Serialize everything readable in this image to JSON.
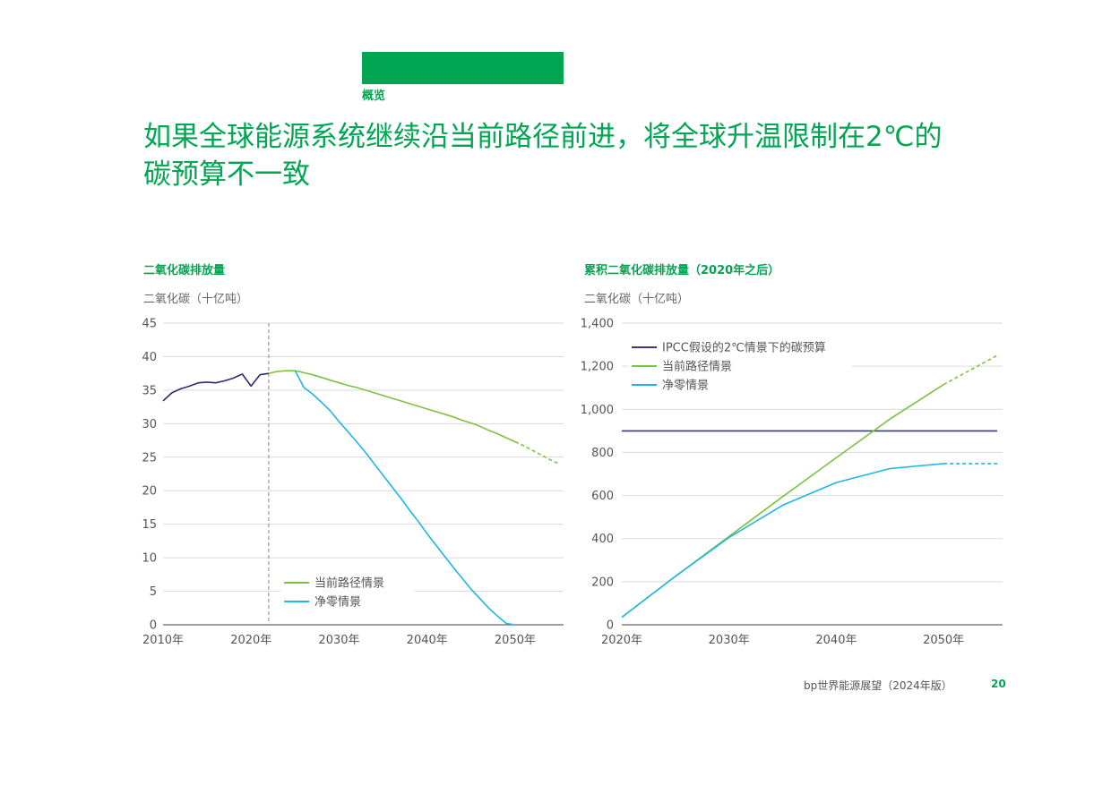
{
  "colors": {
    "brand_green": "#00a651",
    "current_path": "#7dc242",
    "net_zero": "#1eb7e0",
    "historical": "#2e2b6e",
    "ipcc": "#3a3889",
    "grid": "#d9d9d9",
    "axis": "#666666",
    "tick_text": "#555555"
  },
  "header": {
    "section_label": "概览",
    "headline": "如果全球能源系统继续沿当前路径前进，将全球升温限制在2℃的碳预算不一致"
  },
  "footer": {
    "publication": "bp世界能源展望（2024年版）",
    "page_number": "20"
  },
  "chart_data": [
    {
      "type": "line",
      "title": "二氧化碳排放量",
      "ylabel": "二氧化碳（十亿吨）",
      "xlim": [
        2010,
        2055.5
      ],
      "ylim": [
        0,
        45
      ],
      "x_ticks": [
        2010,
        2020,
        2030,
        2040,
        2050
      ],
      "x_tick_labels": [
        "2010年",
        "2020年",
        "2030年",
        "2040年",
        "2050年"
      ],
      "y_ticks": [
        0,
        5,
        10,
        15,
        20,
        25,
        30,
        35,
        40,
        45
      ],
      "y_tick_labels": [
        "0",
        "5",
        "10",
        "15",
        "20",
        "25",
        "30",
        "35",
        "40",
        "45"
      ],
      "grid": true,
      "reference_line_x": 2022,
      "legend_position": "bottom-right",
      "series": [
        {
          "name": "",
          "color": "#2e2b6e",
          "points": [
            [
              2010,
              33.4
            ],
            [
              2011,
              34.6
            ],
            [
              2012,
              35.2
            ],
            [
              2013,
              35.6
            ],
            [
              2014,
              36.1
            ],
            [
              2015,
              36.2
            ],
            [
              2016,
              36.1
            ],
            [
              2017,
              36.4
            ],
            [
              2018,
              36.8
            ],
            [
              2019,
              37.4
            ],
            [
              2020,
              35.6
            ],
            [
              2021,
              37.3
            ],
            [
              2022,
              37.5
            ]
          ]
        },
        {
          "name": "当前路径情景",
          "color": "#7dc242",
          "points": [
            [
              2022,
              37.5
            ],
            [
              2023,
              37.8
            ],
            [
              2024,
              37.9
            ],
            [
              2025,
              37.9
            ],
            [
              2026,
              37.6
            ],
            [
              2027,
              37.3
            ],
            [
              2028,
              36.9
            ],
            [
              2029,
              36.5
            ],
            [
              2030,
              36.1
            ],
            [
              2031,
              35.7
            ],
            [
              2032,
              35.4
            ],
            [
              2033,
              35.0
            ],
            [
              2034,
              34.6
            ],
            [
              2035,
              34.2
            ],
            [
              2036,
              33.8
            ],
            [
              2037,
              33.4
            ],
            [
              2038,
              33.0
            ],
            [
              2039,
              32.6
            ],
            [
              2040,
              32.2
            ],
            [
              2041,
              31.8
            ],
            [
              2042,
              31.4
            ],
            [
              2043,
              31.0
            ],
            [
              2044,
              30.5
            ],
            [
              2045,
              30.1
            ],
            [
              2046,
              29.6
            ],
            [
              2047,
              29.0
            ],
            [
              2048,
              28.5
            ],
            [
              2049,
              27.9
            ],
            [
              2050,
              27.3
            ]
          ],
          "dashed_points": [
            [
              2050,
              27.3
            ],
            [
              2051,
              26.7
            ],
            [
              2052,
              26.0
            ],
            [
              2053,
              25.3
            ],
            [
              2054,
              24.6
            ],
            [
              2055,
              24.0
            ]
          ]
        },
        {
          "name": "净零情景",
          "color": "#1eb7e0",
          "points": [
            [
              2025,
              37.9
            ],
            [
              2026,
              35.4
            ],
            [
              2027,
              34.4
            ],
            [
              2028,
              33.2
            ],
            [
              2029,
              31.9
            ],
            [
              2030,
              30.3
            ],
            [
              2031,
              28.8
            ],
            [
              2032,
              27.3
            ],
            [
              2033,
              25.7
            ],
            [
              2034,
              24.0
            ],
            [
              2035,
              22.3
            ],
            [
              2036,
              20.6
            ],
            [
              2037,
              18.9
            ],
            [
              2038,
              17.1
            ],
            [
              2039,
              15.4
            ],
            [
              2040,
              13.6
            ],
            [
              2041,
              11.9
            ],
            [
              2042,
              10.2
            ],
            [
              2043,
              8.5
            ],
            [
              2044,
              6.9
            ],
            [
              2045,
              5.3
            ],
            [
              2046,
              3.9
            ],
            [
              2047,
              2.5
            ],
            [
              2048,
              1.3
            ],
            [
              2049,
              0.2
            ],
            [
              2050,
              0.0
            ]
          ]
        }
      ]
    },
    {
      "type": "line",
      "title": "累积二氧化碳排放量（2020年之后）",
      "ylabel": "二氧化碳（十亿吨）",
      "xlim": [
        2020,
        2055.5
      ],
      "ylim": [
        0,
        1400
      ],
      "x_ticks": [
        2020,
        2030,
        2040,
        2050
      ],
      "x_tick_labels": [
        "2020年",
        "2030年",
        "2040年",
        "2050年"
      ],
      "y_ticks": [
        0,
        200,
        400,
        600,
        800,
        1000,
        1200,
        1400
      ],
      "y_tick_labels": [
        "0",
        "200",
        "400",
        "600",
        "800",
        "1,000",
        "1,200",
        "1,400"
      ],
      "grid": true,
      "legend_position": "top-left",
      "series": [
        {
          "name": "IPCC假设的2℃情景下的碳预算",
          "color": "#3a3889",
          "points": [
            [
              2020,
              900
            ],
            [
              2055,
              900
            ]
          ]
        },
        {
          "name": "当前路径情景",
          "color": "#7dc242",
          "points": [
            [
              2020,
              35
            ],
            [
              2025,
              225
            ],
            [
              2030,
              410
            ],
            [
              2035,
              595
            ],
            [
              2040,
              775
            ],
            [
              2045,
              955
            ],
            [
              2050,
              1115
            ]
          ],
          "dashed_points": [
            [
              2050,
              1115
            ],
            [
              2055,
              1250
            ]
          ]
        },
        {
          "name": "净零情景",
          "color": "#1eb7e0",
          "points": [
            [
              2020,
              35
            ],
            [
              2025,
              225
            ],
            [
              2030,
              405
            ],
            [
              2035,
              555
            ],
            [
              2040,
              660
            ],
            [
              2045,
              725
            ],
            [
              2050,
              748
            ]
          ],
          "dashed_points": [
            [
              2050,
              748
            ],
            [
              2055,
              748
            ]
          ]
        }
      ]
    }
  ]
}
